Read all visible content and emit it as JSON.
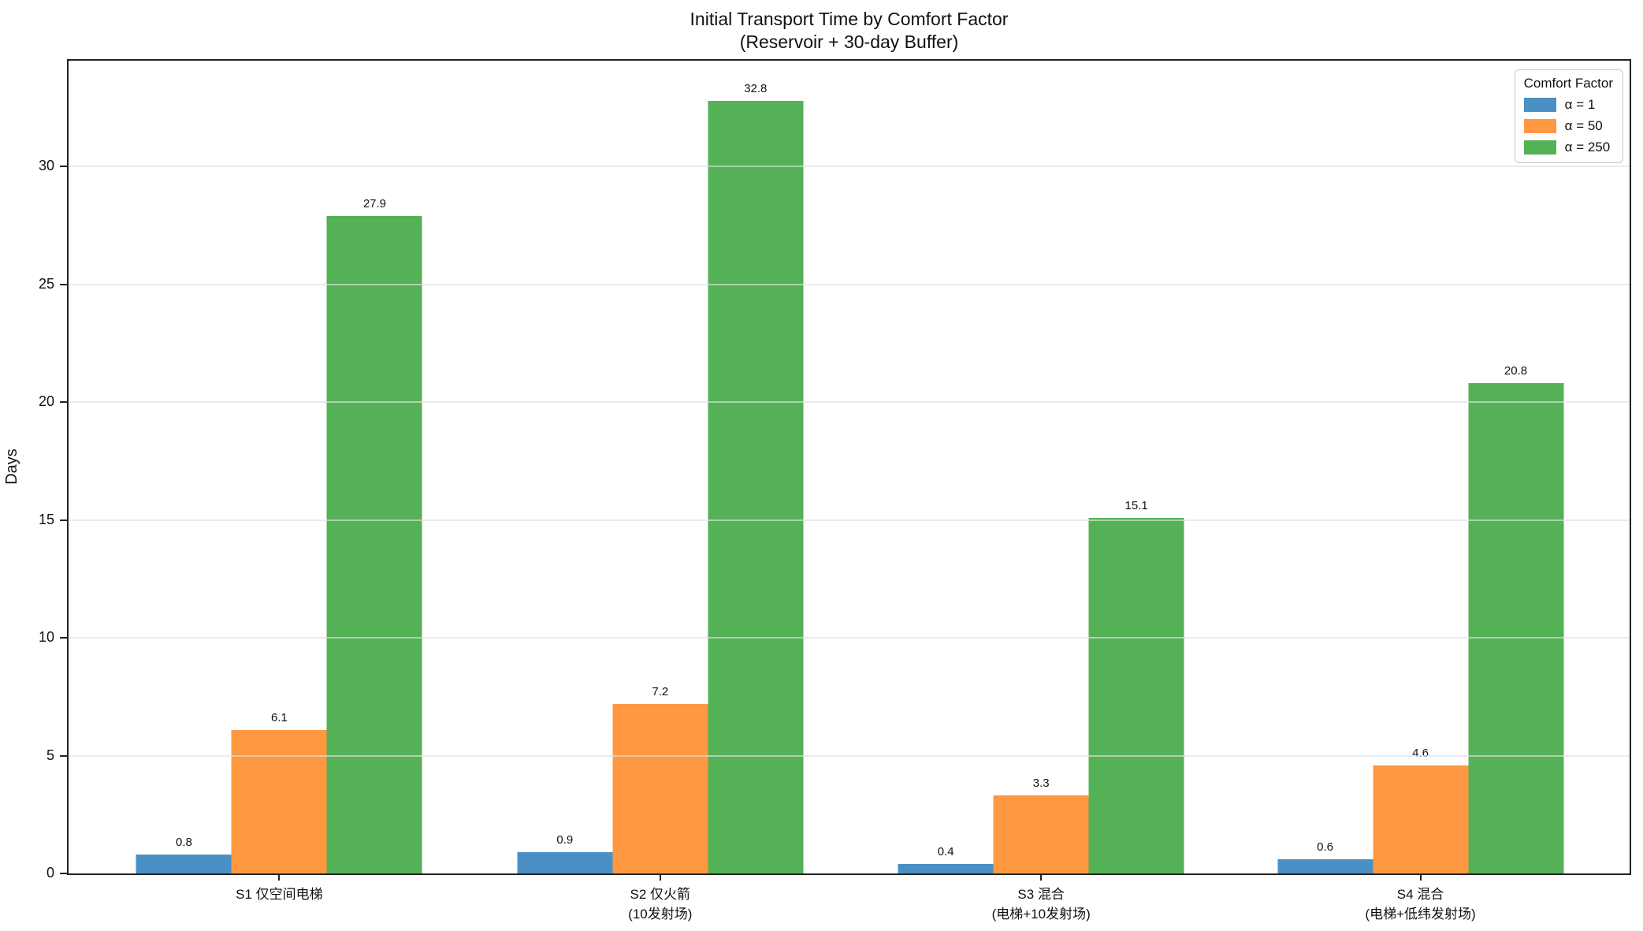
{
  "figure": {
    "title": "Initial Transport Time by Comfort Factor",
    "subtitle": "(Reservoir + 30-day Buffer)",
    "ylabel": "Days"
  },
  "legend": {
    "title": "Comfort Factor"
  },
  "chart_data": {
    "type": "bar",
    "title": "Initial Transport Time by Comfort Factor",
    "subtitle": "(Reservoir + 30-day Buffer)",
    "xlabel": "",
    "ylabel": "Days",
    "categories": [
      [
        "S1 仅空间电梯"
      ],
      [
        "S2 仅火箭",
        "(10发射场)"
      ],
      [
        "S3 混合",
        "(电梯+10发射场)"
      ],
      [
        "S4 混合",
        "(电梯+低纬发射场)"
      ]
    ],
    "series": [
      {
        "name": "α = 1",
        "color": "#4A90C5",
        "values": [
          0.8,
          0.9,
          0.4,
          0.6
        ]
      },
      {
        "name": "α = 50",
        "color": "#FF9841",
        "values": [
          6.1,
          7.2,
          3.3,
          4.6
        ]
      },
      {
        "name": "α = 250",
        "color": "#55B156",
        "values": [
          27.9,
          32.8,
          15.1,
          20.8
        ]
      }
    ],
    "bar_value_labels": [
      [
        "0.8",
        "0.9",
        "0.4",
        "0.6"
      ],
      [
        "6.1",
        "7.2",
        "3.3",
        "4.6"
      ],
      [
        "27.9",
        "32.8",
        "15.1",
        "20.8"
      ]
    ],
    "yticks": [
      0,
      5,
      10,
      15,
      20,
      25,
      30
    ],
    "ylim": [
      0,
      34.5
    ],
    "grid": true,
    "grid_axis": "y",
    "legend_title": "Comfort Factor",
    "legend_position": "upper right"
  }
}
